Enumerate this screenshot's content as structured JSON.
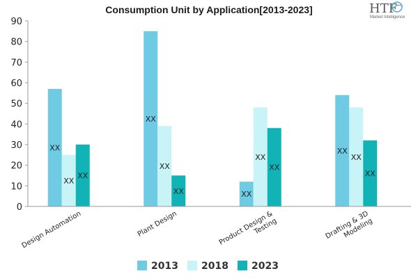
{
  "logo": {
    "text": "HTF",
    "tagline": "Market Intelligence"
  },
  "chart_data": {
    "type": "bar",
    "title": "Consumption Unit by  Application[2013-2023]",
    "categories": [
      [
        "Design Automation"
      ],
      [
        "Plant Design"
      ],
      [
        "Product Design &",
        "Testing"
      ],
      [
        "Drafting & 3D",
        "Modeling"
      ]
    ],
    "series": [
      {
        "name": "2013",
        "color": "#6ecbe3",
        "values": [
          57,
          85,
          12,
          54
        ],
        "labels": [
          "XX",
          "XX",
          "XX",
          "XX"
        ]
      },
      {
        "name": "2018",
        "color": "#c8f3f7",
        "values": [
          25,
          39,
          48,
          48
        ],
        "labels": [
          "XX",
          "XX",
          "XX",
          "XX"
        ]
      },
      {
        "name": "2023",
        "color": "#12b3b6",
        "values": [
          30,
          15,
          38,
          32
        ],
        "labels": [
          "XX",
          "XX",
          "XX",
          "XX"
        ]
      }
    ],
    "ylim": [
      0,
      90
    ],
    "yticks": [
      0,
      10,
      20,
      30,
      40,
      50,
      60,
      70,
      80,
      90
    ],
    "legend_position": "bottom",
    "grid": false
  }
}
